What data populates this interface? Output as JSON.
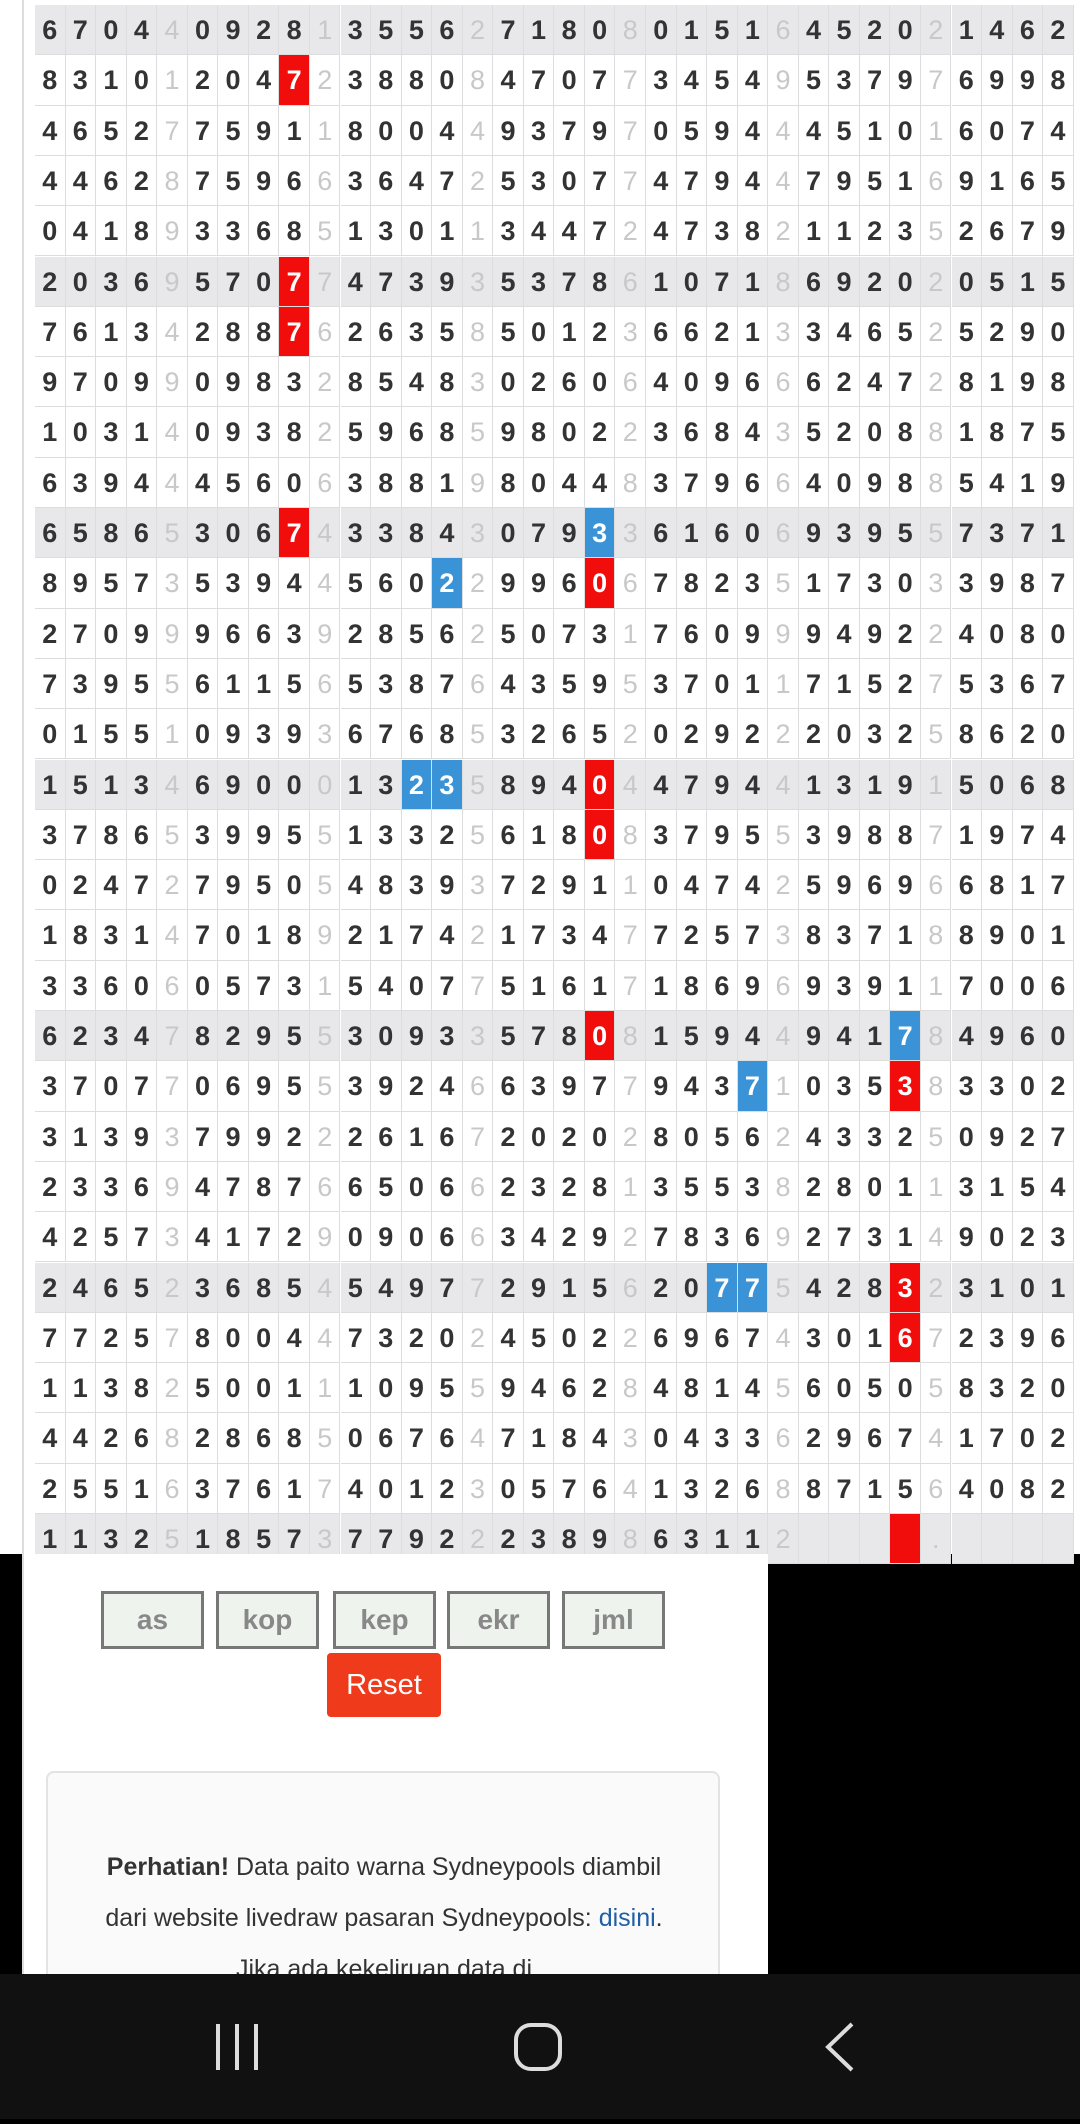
{
  "table": {
    "rows": [
      [
        "6",
        "7",
        "0",
        "4",
        "4",
        "0",
        "9",
        "2",
        "8",
        "1",
        "3",
        "5",
        "5",
        "6",
        "2",
        "7",
        "1",
        "8",
        "0",
        "8",
        "0",
        "1",
        "5",
        "1",
        "6",
        "4",
        "5",
        "2",
        "0",
        "2",
        "1",
        "4",
        "6",
        "2"
      ],
      [
        "8",
        "3",
        "1",
        "0",
        "1",
        "2",
        "0",
        "4",
        "7",
        "2",
        "3",
        "8",
        "8",
        "0",
        "8",
        "4",
        "7",
        "0",
        "7",
        "7",
        "3",
        "4",
        "5",
        "4",
        "9",
        "5",
        "3",
        "7",
        "9",
        "7",
        "6",
        "9",
        "9",
        "8"
      ],
      [
        "4",
        "6",
        "5",
        "2",
        "7",
        "7",
        "5",
        "9",
        "1",
        "1",
        "8",
        "0",
        "0",
        "4",
        "4",
        "9",
        "3",
        "7",
        "9",
        "7",
        "0",
        "5",
        "9",
        "4",
        "4",
        "4",
        "5",
        "1",
        "0",
        "1",
        "6",
        "0",
        "7",
        "4"
      ],
      [
        "4",
        "4",
        "6",
        "2",
        "8",
        "7",
        "5",
        "9",
        "6",
        "6",
        "3",
        "6",
        "4",
        "7",
        "2",
        "5",
        "3",
        "0",
        "7",
        "7",
        "4",
        "7",
        "9",
        "4",
        "4",
        "7",
        "9",
        "5",
        "1",
        "6",
        "9",
        "1",
        "6",
        "5"
      ],
      [
        "0",
        "4",
        "1",
        "8",
        "9",
        "3",
        "3",
        "6",
        "8",
        "5",
        "1",
        "3",
        "0",
        "1",
        "1",
        "3",
        "4",
        "4",
        "7",
        "2",
        "4",
        "7",
        "3",
        "8",
        "2",
        "1",
        "1",
        "2",
        "3",
        "5",
        "2",
        "6",
        "7",
        "9"
      ],
      [
        "2",
        "0",
        "3",
        "6",
        "9",
        "5",
        "7",
        "0",
        "7",
        "7",
        "4",
        "7",
        "3",
        "9",
        "3",
        "5",
        "3",
        "7",
        "8",
        "6",
        "1",
        "0",
        "7",
        "1",
        "8",
        "6",
        "9",
        "2",
        "0",
        "2",
        "0",
        "5",
        "1",
        "5"
      ],
      [
        "7",
        "6",
        "1",
        "3",
        "4",
        "2",
        "8",
        "8",
        "7",
        "6",
        "2",
        "6",
        "3",
        "5",
        "8",
        "5",
        "0",
        "1",
        "2",
        "3",
        "6",
        "6",
        "2",
        "1",
        "3",
        "3",
        "4",
        "6",
        "5",
        "2",
        "5",
        "2",
        "9",
        "0"
      ],
      [
        "9",
        "7",
        "0",
        "9",
        "9",
        "0",
        "9",
        "8",
        "3",
        "2",
        "8",
        "5",
        "4",
        "8",
        "3",
        "0",
        "2",
        "6",
        "0",
        "6",
        "4",
        "0",
        "9",
        "6",
        "6",
        "6",
        "2",
        "4",
        "7",
        "2",
        "8",
        "1",
        "9",
        "8"
      ],
      [
        "1",
        "0",
        "3",
        "1",
        "4",
        "0",
        "9",
        "3",
        "8",
        "2",
        "5",
        "9",
        "6",
        "8",
        "5",
        "9",
        "8",
        "0",
        "2",
        "2",
        "3",
        "6",
        "8",
        "4",
        "3",
        "5",
        "2",
        "0",
        "8",
        "8",
        "1",
        "8",
        "7",
        "5"
      ],
      [
        "6",
        "3",
        "9",
        "4",
        "4",
        "4",
        "5",
        "6",
        "0",
        "6",
        "3",
        "8",
        "8",
        "1",
        "9",
        "8",
        "0",
        "4",
        "4",
        "8",
        "3",
        "7",
        "9",
        "6",
        "6",
        "4",
        "0",
        "9",
        "8",
        "8",
        "5",
        "4",
        "1",
        "9"
      ],
      [
        "6",
        "5",
        "8",
        "6",
        "5",
        "3",
        "0",
        "6",
        "7",
        "4",
        "3",
        "3",
        "8",
        "4",
        "3",
        "0",
        "7",
        "9",
        "3",
        "3",
        "6",
        "1",
        "6",
        "0",
        "6",
        "9",
        "3",
        "9",
        "5",
        "5",
        "7",
        "3",
        "7",
        "1"
      ],
      [
        "8",
        "9",
        "5",
        "7",
        "3",
        "5",
        "3",
        "9",
        "4",
        "4",
        "5",
        "6",
        "0",
        "2",
        "2",
        "9",
        "9",
        "6",
        "0",
        "6",
        "7",
        "8",
        "2",
        "3",
        "5",
        "1",
        "7",
        "3",
        "0",
        "3",
        "3",
        "9",
        "8",
        "7"
      ],
      [
        "2",
        "7",
        "0",
        "9",
        "9",
        "9",
        "6",
        "6",
        "3",
        "9",
        "2",
        "8",
        "5",
        "6",
        "2",
        "5",
        "0",
        "7",
        "3",
        "1",
        "7",
        "6",
        "0",
        "9",
        "9",
        "9",
        "4",
        "9",
        "2",
        "2",
        "4",
        "0",
        "8",
        "0"
      ],
      [
        "7",
        "3",
        "9",
        "5",
        "5",
        "6",
        "1",
        "1",
        "5",
        "6",
        "5",
        "3",
        "8",
        "7",
        "6",
        "4",
        "3",
        "5",
        "9",
        "5",
        "3",
        "7",
        "0",
        "1",
        "1",
        "7",
        "1",
        "5",
        "2",
        "7",
        "5",
        "3",
        "6",
        "7"
      ],
      [
        "0",
        "1",
        "5",
        "5",
        "1",
        "0",
        "9",
        "3",
        "9",
        "3",
        "6",
        "7",
        "6",
        "8",
        "5",
        "3",
        "2",
        "6",
        "5",
        "2",
        "0",
        "2",
        "9",
        "2",
        "2",
        "2",
        "0",
        "3",
        "2",
        "5",
        "8",
        "6",
        "2",
        "0"
      ],
      [
        "1",
        "5",
        "1",
        "3",
        "4",
        "6",
        "9",
        "0",
        "0",
        "0",
        "1",
        "3",
        "2",
        "3",
        "5",
        "8",
        "9",
        "4",
        "0",
        "4",
        "4",
        "7",
        "9",
        "4",
        "4",
        "1",
        "3",
        "1",
        "9",
        "1",
        "5",
        "0",
        "6",
        "8"
      ],
      [
        "3",
        "7",
        "8",
        "6",
        "5",
        "3",
        "9",
        "9",
        "5",
        "5",
        "1",
        "3",
        "3",
        "2",
        "5",
        "6",
        "1",
        "8",
        "0",
        "8",
        "3",
        "7",
        "9",
        "5",
        "5",
        "3",
        "9",
        "8",
        "8",
        "7",
        "1",
        "9",
        "7",
        "4"
      ],
      [
        "0",
        "2",
        "4",
        "7",
        "2",
        "7",
        "9",
        "5",
        "0",
        "5",
        "4",
        "8",
        "3",
        "9",
        "3",
        "7",
        "2",
        "9",
        "1",
        "1",
        "0",
        "4",
        "7",
        "4",
        "2",
        "5",
        "9",
        "6",
        "9",
        "6",
        "6",
        "8",
        "1",
        "7"
      ],
      [
        "1",
        "8",
        "3",
        "1",
        "4",
        "7",
        "0",
        "1",
        "8",
        "9",
        "2",
        "1",
        "7",
        "4",
        "2",
        "1",
        "7",
        "3",
        "4",
        "7",
        "7",
        "2",
        "5",
        "7",
        "3",
        "8",
        "3",
        "7",
        "1",
        "8",
        "8",
        "9",
        "0",
        "1"
      ],
      [
        "3",
        "3",
        "6",
        "0",
        "6",
        "0",
        "5",
        "7",
        "3",
        "1",
        "5",
        "4",
        "0",
        "7",
        "7",
        "5",
        "1",
        "6",
        "1",
        "7",
        "1",
        "8",
        "6",
        "9",
        "6",
        "9",
        "3",
        "9",
        "1",
        "1",
        "7",
        "0",
        "0",
        "6"
      ],
      [
        "6",
        "2",
        "3",
        "4",
        "7",
        "8",
        "2",
        "9",
        "5",
        "5",
        "3",
        "0",
        "9",
        "3",
        "3",
        "5",
        "7",
        "8",
        "0",
        "8",
        "1",
        "5",
        "9",
        "4",
        "4",
        "9",
        "4",
        "1",
        "7",
        "8",
        "4",
        "9",
        "6",
        "0"
      ],
      [
        "3",
        "7",
        "0",
        "7",
        "7",
        "0",
        "6",
        "9",
        "5",
        "5",
        "3",
        "9",
        "2",
        "4",
        "6",
        "6",
        "3",
        "9",
        "7",
        "7",
        "9",
        "4",
        "3",
        "7",
        "1",
        "0",
        "3",
        "5",
        "3",
        "8",
        "3",
        "3",
        "0",
        "2"
      ],
      [
        "3",
        "1",
        "3",
        "9",
        "3",
        "7",
        "9",
        "9",
        "2",
        "2",
        "2",
        "6",
        "1",
        "6",
        "7",
        "2",
        "0",
        "2",
        "0",
        "2",
        "8",
        "0",
        "5",
        "6",
        "2",
        "4",
        "3",
        "3",
        "2",
        "5",
        "0",
        "9",
        "2",
        "7"
      ],
      [
        "2",
        "3",
        "3",
        "6",
        "9",
        "4",
        "7",
        "8",
        "7",
        "6",
        "6",
        "5",
        "0",
        "6",
        "6",
        "2",
        "3",
        "2",
        "8",
        "1",
        "3",
        "5",
        "5",
        "3",
        "8",
        "2",
        "8",
        "0",
        "1",
        "1",
        "3",
        "1",
        "5",
        "4"
      ],
      [
        "4",
        "2",
        "5",
        "7",
        "3",
        "4",
        "1",
        "7",
        "2",
        "9",
        "0",
        "9",
        "0",
        "6",
        "6",
        "3",
        "4",
        "2",
        "9",
        "2",
        "7",
        "8",
        "3",
        "6",
        "9",
        "2",
        "7",
        "3",
        "1",
        "4",
        "9",
        "0",
        "2",
        "3"
      ],
      [
        "2",
        "4",
        "6",
        "5",
        "2",
        "3",
        "6",
        "8",
        "5",
        "4",
        "5",
        "4",
        "9",
        "7",
        "7",
        "2",
        "9",
        "1",
        "5",
        "6",
        "2",
        "0",
        "7",
        "7",
        "5",
        "4",
        "2",
        "8",
        "3",
        "2",
        "3",
        "1",
        "0",
        "1"
      ],
      [
        "7",
        "7",
        "2",
        "5",
        "7",
        "8",
        "0",
        "0",
        "4",
        "4",
        "7",
        "3",
        "2",
        "0",
        "2",
        "4",
        "5",
        "0",
        "2",
        "2",
        "6",
        "9",
        "6",
        "7",
        "4",
        "3",
        "0",
        "1",
        "6",
        "7",
        "2",
        "3",
        "9",
        "6"
      ],
      [
        "1",
        "1",
        "3",
        "8",
        "2",
        "5",
        "0",
        "0",
        "1",
        "1",
        "1",
        "0",
        "9",
        "5",
        "5",
        "9",
        "4",
        "6",
        "2",
        "8",
        "4",
        "8",
        "1",
        "4",
        "5",
        "6",
        "0",
        "5",
        "0",
        "5",
        "8",
        "3",
        "2",
        "0"
      ],
      [
        "4",
        "4",
        "2",
        "6",
        "8",
        "2",
        "8",
        "6",
        "8",
        "5",
        "0",
        "6",
        "7",
        "6",
        "4",
        "7",
        "1",
        "8",
        "4",
        "3",
        "0",
        "4",
        "3",
        "3",
        "6",
        "2",
        "9",
        "6",
        "7",
        "4",
        "1",
        "7",
        "0",
        "2"
      ],
      [
        "2",
        "5",
        "5",
        "1",
        "6",
        "3",
        "7",
        "6",
        "1",
        "7",
        "4",
        "0",
        "1",
        "2",
        "3",
        "0",
        "5",
        "7",
        "6",
        "4",
        "1",
        "3",
        "2",
        "6",
        "8",
        "8",
        "7",
        "1",
        "5",
        "6",
        "4",
        "0",
        "8",
        "2"
      ],
      [
        "1",
        "1",
        "3",
        "2",
        "5",
        "1",
        "8",
        "5",
        "7",
        "3",
        "7",
        "7",
        "9",
        "2",
        "2",
        "2",
        "3",
        "8",
        "9",
        "8",
        "6",
        "3",
        "1",
        "1",
        "2",
        null,
        null,
        null,
        null,
        ".",
        null,
        null,
        null,
        null
      ]
    ]
  },
  "buttons": [
    "as",
    "kop",
    "kep",
    "ekr",
    "jml"
  ],
  "reset": "Reset",
  "notice": {
    "bold": "Perhatian!",
    "text1": " Data paito warna Sydneypools diambil dari website livedraw pasaran Sydneypools: ",
    "link": "disini",
    "text2": ". Jika ada kekeliruan data di"
  }
}
